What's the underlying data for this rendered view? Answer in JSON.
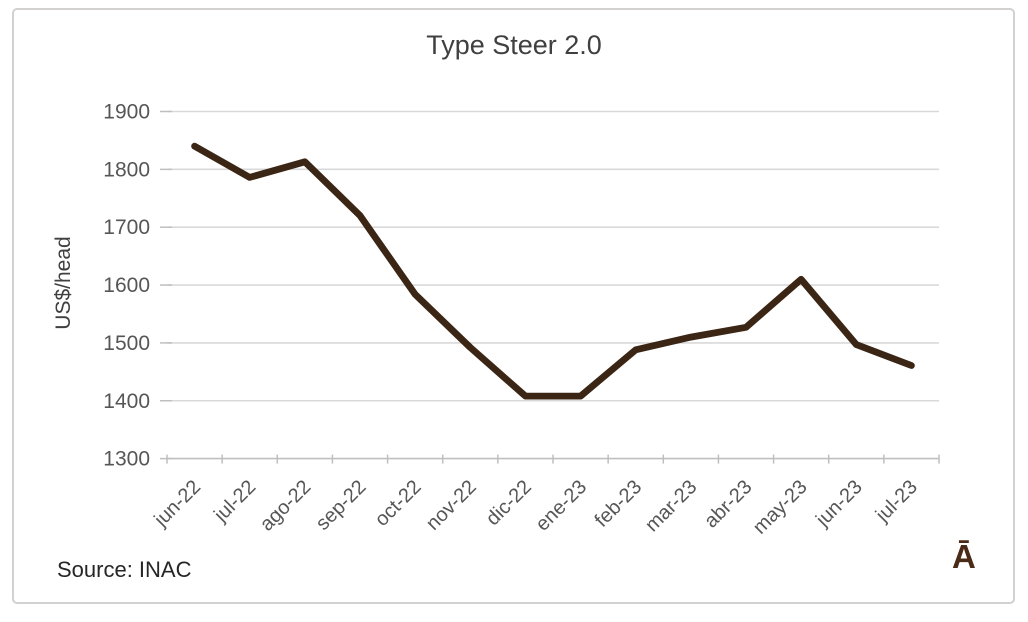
{
  "chart_data": {
    "type": "line",
    "title": "Type Steer 2.0",
    "ylabel": "US$/head",
    "xlabel": "",
    "categories": [
      "jun-22",
      "jul-22",
      "ago-22",
      "sep-22",
      "oct-22",
      "nov-22",
      "dic-22",
      "ene-23",
      "feb-23",
      "mar-23",
      "abr-23",
      "may-23",
      "jun-23",
      "jul-23"
    ],
    "series": [
      {
        "name": "Type Steer 2.0",
        "color": "#3b2514",
        "values": [
          1840,
          1786,
          1813,
          1720,
          1584,
          1492,
          1408,
          1408,
          1488,
          1510,
          1527,
          1610,
          1497,
          1461
        ]
      }
    ],
    "ylim": [
      1300,
      1900
    ],
    "y_ticks": [
      1900,
      1800,
      1700,
      1600,
      1500,
      1400,
      1300
    ],
    "grid": "horizontal-only",
    "legend": "none",
    "x_labels_rotation_deg": -45
  },
  "footer": {
    "source": "Source: INAC",
    "logo": "Ā"
  },
  "colors": {
    "line": "#3b2514",
    "gridline": "#d9d9d9",
    "axis": "#bfbfbf",
    "tick_text": "#565656",
    "title_text": "#404040",
    "source_text": "#262626",
    "logo": "#4a2b17",
    "frame_border": "#d3d0d0"
  }
}
